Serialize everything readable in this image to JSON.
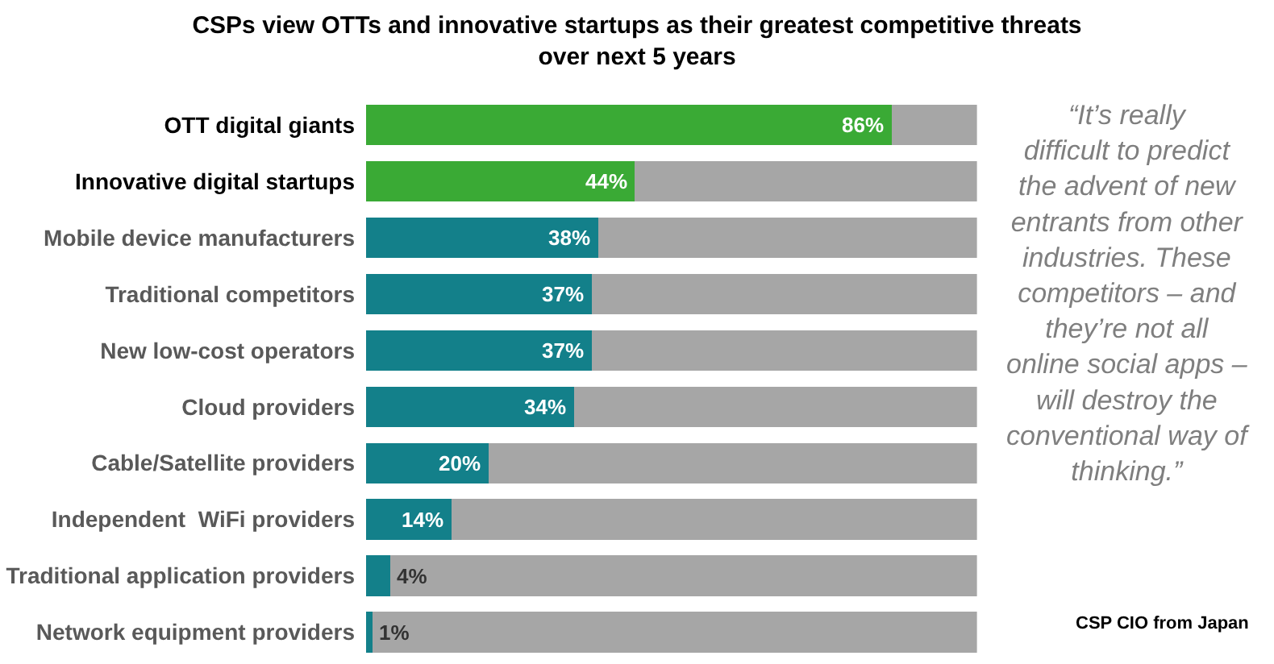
{
  "chart_data": {
    "type": "bar",
    "orientation": "horizontal",
    "stacked": true,
    "title": "CSPs view OTTs and innovative startups as their greatest competitive threats over next 5 years",
    "categories": [
      "OTT digital giants",
      "Innovative digital startups",
      "Mobile device manufacturers",
      "Traditional competitors",
      "New low-cost operators",
      "Cloud providers",
      "Cable/Satellite providers",
      "Independent  WiFi providers",
      "Traditional application providers",
      "Network equipment providers"
    ],
    "series": [
      {
        "colors": [
          "#3aaa35",
          "#3aaa35",
          "#13808a",
          "#13808a",
          "#13808a",
          "#13808a",
          "#13808a",
          "#13808a",
          "#13808a",
          "#13808a"
        ],
        "values": [
          86,
          44,
          38,
          37,
          37,
          34,
          20,
          14,
          4,
          1
        ],
        "value_labels": [
          "86%",
          "44%",
          "38%",
          "37%",
          "37%",
          "34%",
          "20%",
          "14%",
          "4%",
          "1%"
        ]
      },
      {
        "color": "#a6a6a6",
        "values": [
          14,
          56,
          62,
          63,
          63,
          66,
          80,
          86,
          96,
          99
        ]
      }
    ],
    "xlim": [
      0,
      100
    ],
    "tick_labels": false,
    "legend": false,
    "annotations": [
      "“It’s really difficult to predict the advent of new entrants from other industries. These competitors – and they’re not all online social apps – will destroy the conventional way of thinking.”",
      "CSP CIO from Japan"
    ]
  }
}
